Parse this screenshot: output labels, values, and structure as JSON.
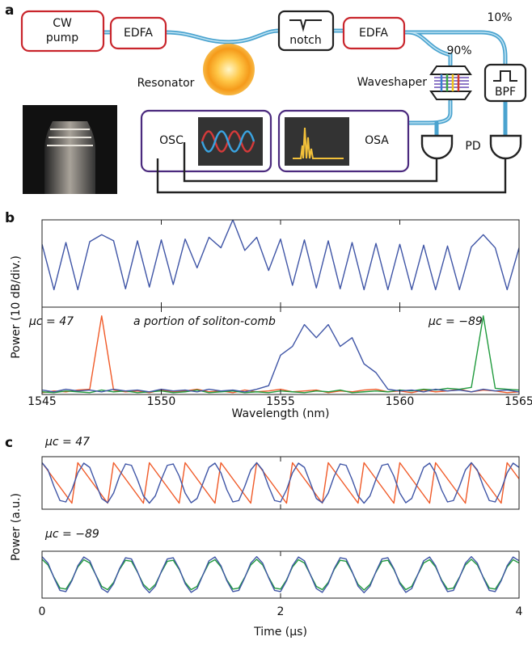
{
  "diagram": {
    "panel_label": "a",
    "cw_pump": [
      "CW",
      "pump"
    ],
    "edfa1": "EDFA",
    "notch": "notch",
    "edfa2": "EDFA",
    "resonator": "Resonator",
    "split_10": "10%",
    "split_90": "90%",
    "waveshaper": "Waveshaper",
    "bpf": "BPF",
    "osc": "OSC",
    "osa": "OSA",
    "pd": "PD"
  },
  "chart_data": [
    {
      "type": "line",
      "panel_label": "b",
      "xlabel": "Wavelength (nm)",
      "ylabel": "Power (10 dB/div.)",
      "xlim": [
        1545,
        1565
      ],
      "xticks": [
        1545,
        1550,
        1555,
        1560,
        1565
      ],
      "x": [
        1545,
        1545.5,
        1546,
        1546.5,
        1547,
        1547.5,
        1548,
        1548.5,
        1549,
        1549.5,
        1550,
        1550.5,
        1551,
        1551.5,
        1552,
        1552.5,
        1553,
        1553.5,
        1554,
        1554.5,
        1555,
        1555.5,
        1556,
        1556.5,
        1557,
        1557.5,
        1558,
        1558.5,
        1559,
        1559.5,
        1560,
        1560.5,
        1561,
        1561.5,
        1562,
        1562.5,
        1563,
        1563.5,
        1564,
        1564.5,
        1565
      ],
      "panels": [
        {
          "ylim": [
            0,
            10
          ],
          "series": [
            {
              "color": "#3f55a6",
              "values": [
                7.2,
                2.0,
                7.4,
                2.0,
                7.5,
                8.3,
                7.6,
                2.1,
                7.6,
                2.3,
                7.7,
                2.6,
                7.8,
                4.5,
                8.0,
                6.8,
                10,
                6.5,
                8.0,
                4.2,
                7.8,
                2.5,
                7.7,
                2.2,
                7.6,
                2.1,
                7.4,
                2.0,
                7.3,
                2.0,
                7.2,
                2.0,
                7.1,
                2.0,
                7.0,
                2.0,
                6.9,
                8.3,
                6.8,
                2.0,
                6.8
              ]
            }
          ]
        },
        {
          "ylim": [
            0,
            10
          ],
          "series": [
            {
              "name": "μc = 47",
              "color": "#f05a28",
              "values": [
                0.2,
                0.4,
                0.3,
                0.5,
                0.6,
                9.0,
                0.5,
                0.3,
                0.4,
                0.2,
                0.5,
                0.3,
                0.4,
                0.6,
                0.3,
                0.4,
                0.2,
                0.5,
                0.3,
                0.4,
                0.6,
                0.3,
                0.4,
                0.5,
                0.2,
                0.4,
                0.3,
                0.5,
                0.6,
                0.3,
                0.4,
                0.2,
                0.5,
                0.3,
                0.4,
                0.6,
                0.3,
                0.5,
                0.4,
                0.2,
                0.3
              ]
            },
            {
              "name": "μc = −89",
              "color": "#1f9a3c",
              "values": [
                0.3,
                0.2,
                0.4,
                0.3,
                0.2,
                0.5,
                0.3,
                0.4,
                0.2,
                0.3,
                0.4,
                0.2,
                0.3,
                0.5,
                0.2,
                0.3,
                0.4,
                0.2,
                0.3,
                0.2,
                0.4,
                0.3,
                0.2,
                0.4,
                0.3,
                0.5,
                0.2,
                0.3,
                0.4,
                0.3,
                0.5,
                0.4,
                0.6,
                0.5,
                0.7,
                0.6,
                0.8,
                9.0,
                0.7,
                0.6,
                0.5
              ]
            },
            {
              "name": "a portion of soliton-comb",
              "color": "#3f55a6",
              "values": [
                0.5,
                0.3,
                0.6,
                0.4,
                0.5,
                0.3,
                0.6,
                0.4,
                0.5,
                0.3,
                0.6,
                0.4,
                0.5,
                0.3,
                0.6,
                0.4,
                0.5,
                0.3,
                0.6,
                1.0,
                4.5,
                5.5,
                8.0,
                6.5,
                8.0,
                5.5,
                6.5,
                3.5,
                2.5,
                0.6,
                0.4,
                0.5,
                0.3,
                0.6,
                0.4,
                0.5,
                0.3,
                0.6,
                0.4,
                0.5,
                0.3
              ]
            }
          ]
        }
      ]
    },
    {
      "type": "line",
      "panel_label": "c",
      "xlabel": "Time (μs)",
      "ylabel": "Power (a.u.)",
      "xlim": [
        0,
        4
      ],
      "xticks": [
        0,
        2,
        4
      ],
      "x": [
        0,
        0.05,
        0.1,
        0.15,
        0.2,
        0.25,
        0.3,
        0.35,
        0.4,
        0.45,
        0.5,
        0.55,
        0.6,
        0.65,
        0.7,
        0.75,
        0.8,
        0.85,
        0.9,
        0.95,
        1,
        1.05,
        1.1,
        1.15,
        1.2,
        1.25,
        1.3,
        1.35,
        1.4,
        1.45,
        1.5,
        1.55,
        1.6,
        1.65,
        1.7,
        1.75,
        1.8,
        1.85,
        1.9,
        1.95,
        2,
        2.05,
        2.1,
        2.15,
        2.2,
        2.25,
        2.3,
        2.35,
        2.4,
        2.45,
        2.5,
        2.55,
        2.6,
        2.65,
        2.7,
        2.75,
        2.8,
        2.85,
        2.9,
        2.95,
        3,
        3.05,
        3.1,
        3.15,
        3.2,
        3.25,
        3.3,
        3.35,
        3.4,
        3.45,
        3.5,
        3.55,
        3.6,
        3.65,
        3.7,
        3.75,
        3.8,
        3.85,
        3.9,
        3.95,
        4
      ],
      "panels": [
        {
          "ylim": [
            -1.3,
            1.3
          ],
          "series": [
            {
              "name": "μc = 47",
              "color": "#f05a28",
              "values": [
                1,
                0.6,
                0.2,
                -0.2,
                -0.6,
                -1,
                1,
                0.6,
                0.2,
                -0.2,
                -0.6,
                -1,
                1,
                0.6,
                0.2,
                -0.2,
                -0.6,
                -1,
                1,
                0.6,
                0.2,
                -0.2,
                -0.6,
                -1,
                1,
                0.6,
                0.2,
                -0.2,
                -0.6,
                -1,
                1,
                0.6,
                0.2,
                -0.2,
                -0.6,
                -1,
                1,
                0.6,
                0.2,
                -0.2,
                -0.6,
                -1,
                1,
                0.6,
                0.2,
                -0.2,
                -0.6,
                -1,
                1,
                0.6,
                0.2,
                -0.2,
                -0.6,
                -1,
                1,
                0.6,
                0.2,
                -0.2,
                -0.6,
                -1,
                1,
                0.6,
                0.2,
                -0.2,
                -0.6,
                -1,
                1,
                0.6,
                0.2,
                -0.2,
                -0.6,
                -1,
                1,
                0.6,
                0.2,
                -0.2,
                -0.6,
                -1,
                1,
                0.6,
                0.2
              ]
            },
            {
              "color": "#3f55a6",
              "values": [
                1,
                0.64,
                -0.17,
                -0.87,
                -0.94,
                -0.34,
                0.5,
                0.98,
                0.77,
                0,
                -0.77,
                -0.98,
                -0.5,
                0.34,
                0.94,
                0.87,
                0.17,
                -0.64,
                -1,
                -0.64,
                0.17,
                0.87,
                0.94,
                0.34,
                -0.5,
                -0.98,
                -0.77,
                0,
                0.77,
                0.98,
                0.5,
                -0.34,
                -0.94,
                -0.87,
                -0.17,
                0.64,
                1,
                0.64,
                -0.17,
                -0.87,
                -0.94,
                -0.34,
                0.5,
                0.98,
                0.77,
                0,
                -0.77,
                -0.98,
                -0.5,
                0.34,
                0.94,
                0.87,
                0.17,
                -0.64,
                -1,
                -0.64,
                0.17,
                0.87,
                0.94,
                0.34,
                -0.5,
                -0.98,
                -0.77,
                0,
                0.77,
                0.98,
                0.5,
                -0.34,
                -0.94,
                -0.87,
                -0.17,
                0.64,
                1,
                0.64,
                -0.17,
                -0.87,
                -0.94,
                -0.34,
                0.5,
                0.98,
                0.77
              ]
            }
          ]
        },
        {
          "ylim": [
            -1.3,
            1.3
          ],
          "series": [
            {
              "name": "μc = −89",
              "color": "#1f9a3c",
              "values": [
                0.85,
                0.54,
                -0.14,
                -0.74,
                -0.8,
                -0.29,
                0.43,
                0.83,
                0.65,
                0,
                -0.65,
                -0.83,
                -0.43,
                0.29,
                0.8,
                0.74,
                0.14,
                -0.54,
                -0.85,
                -0.54,
                0.14,
                0.74,
                0.8,
                0.29,
                -0.43,
                -0.83,
                -0.65,
                0,
                0.65,
                0.83,
                0.43,
                -0.29,
                -0.8,
                -0.74,
                -0.14,
                0.54,
                0.85,
                0.54,
                -0.14,
                -0.74,
                -0.8,
                -0.29,
                0.43,
                0.83,
                0.65,
                0,
                -0.65,
                -0.83,
                -0.43,
                0.29,
                0.8,
                0.74,
                0.14,
                -0.54,
                -0.85,
                -0.54,
                0.14,
                0.74,
                0.8,
                0.29,
                -0.43,
                -0.83,
                -0.65,
                0,
                0.65,
                0.83,
                0.43,
                -0.29,
                -0.8,
                -0.74,
                -0.14,
                0.54,
                0.85,
                0.54,
                -0.14,
                -0.74,
                -0.8,
                -0.29,
                0.43,
                0.83,
                0.65
              ]
            },
            {
              "color": "#3f55a6",
              "values": [
                1,
                0.64,
                -0.17,
                -0.87,
                -0.94,
                -0.34,
                0.5,
                0.98,
                0.77,
                0,
                -0.77,
                -0.98,
                -0.5,
                0.34,
                0.94,
                0.87,
                0.17,
                -0.64,
                -1,
                -0.64,
                0.17,
                0.87,
                0.94,
                0.34,
                -0.5,
                -0.98,
                -0.77,
                0,
                0.77,
                0.98,
                0.5,
                -0.34,
                -0.94,
                -0.87,
                -0.17,
                0.64,
                1,
                0.64,
                -0.17,
                -0.87,
                -0.94,
                -0.34,
                0.5,
                0.98,
                0.77,
                0,
                -0.77,
                -0.98,
                -0.5,
                0.34,
                0.94,
                0.87,
                0.17,
                -0.64,
                -1,
                -0.64,
                0.17,
                0.87,
                0.94,
                0.34,
                -0.5,
                -0.98,
                -0.77,
                0,
                0.77,
                0.98,
                0.5,
                -0.34,
                -0.94,
                -0.87,
                -0.17,
                0.64,
                1,
                0.64,
                -0.17,
                -0.87,
                -0.94,
                -0.34,
                0.5,
                0.98,
                0.77
              ]
            }
          ]
        }
      ]
    }
  ]
}
